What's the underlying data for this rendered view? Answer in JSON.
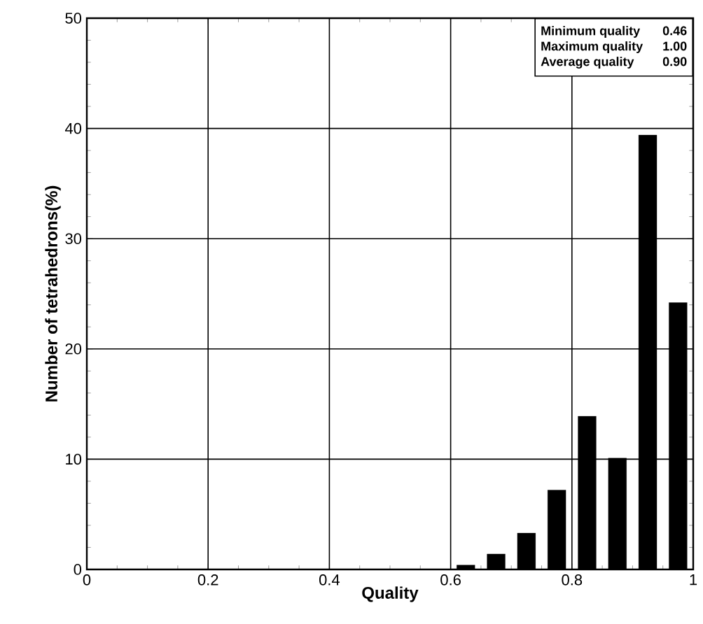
{
  "chart_data": {
    "type": "histogram",
    "xlabel": "Quality",
    "ylabel": "Number of tetrahedrons(%)",
    "bins": [
      0.6,
      0.65,
      0.7,
      0.75,
      0.8,
      0.85,
      0.9,
      0.95,
      1.0
    ],
    "values": [
      0.4,
      1.4,
      3.3,
      7.2,
      13.9,
      10.1,
      39.4,
      24.2
    ],
    "color": "#000000",
    "xlim": [
      0,
      1
    ],
    "ylim": [
      0,
      50
    ],
    "xticks": [
      0,
      0.2,
      0.4,
      0.6,
      0.8,
      1
    ],
    "yticks": [
      0,
      10,
      20,
      30,
      40,
      50
    ],
    "grid": true,
    "annotations": [
      "Minimum quality",
      "0.46",
      "Maximum quality",
      "1.00",
      "Average quality",
      "0.90"
    ]
  }
}
